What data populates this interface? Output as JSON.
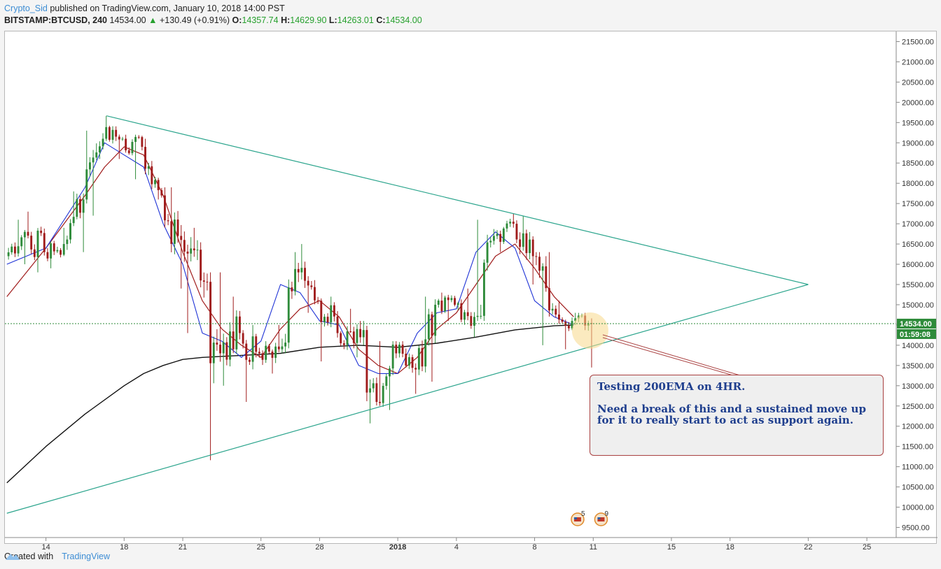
{
  "header": {
    "author": "Crypto_Sid",
    "published": "published on TradingView.com, January 10, 2018 14:00 PST",
    "symbol": "BITSTAMP:BTCUSD, 240",
    "last": "14534.00",
    "change": "+130.49 (+0.91%)",
    "open_label": "O:",
    "open": "14357.74",
    "high_label": "H:",
    "high": "14629.90",
    "low_label": "L:",
    "low": "14263.01",
    "close_label": "C:",
    "close": "14534.00"
  },
  "footer": {
    "created_with": "Created with",
    "brand": "TradingView"
  },
  "annotation": {
    "line1": "Testing 200EMA on 4HR.",
    "line2": "Need a break of this and a sustained move up for it to really start to act as support again."
  },
  "price_tag": {
    "price": "14534.00",
    "countdown": "01:59:08"
  },
  "event_badges": [
    "5",
    "9"
  ],
  "colors": {
    "up": "#2e8b3a",
    "down": "#a01c1c",
    "ema_fast": "#1f33d6",
    "ema_mid": "#a01c1c",
    "ema_200": "#111111",
    "trendline": "#2aa48c",
    "price_line": "#2e8b3a",
    "highlight": "#f7d98a"
  },
  "chart_data": {
    "type": "candlestick",
    "symbol": "BITSTAMP:BTCUSD",
    "interval": "240",
    "ylim": [
      9250,
      21750
    ],
    "y_ticks": [
      9500,
      10000,
      10500,
      11000,
      11500,
      12000,
      12500,
      13000,
      13500,
      14000,
      14500,
      15000,
      15500,
      16000,
      16500,
      17000,
      17500,
      18000,
      18500,
      19000,
      19500,
      20000,
      20500,
      21000,
      21500
    ],
    "x_ticks": [
      "14",
      "18",
      "21",
      "25",
      "28",
      "2018",
      "4",
      "8",
      "11",
      "15",
      "18",
      "22",
      "25"
    ],
    "x_tick_days": [
      14,
      18,
      21,
      25,
      28,
      32,
      35,
      39,
      42,
      46,
      49,
      53,
      56
    ],
    "x_range_days": [
      11.9,
      57.5
    ],
    "candles_daily": [
      {
        "day": 12,
        "o": 16200,
        "h": 17100,
        "l": 16000,
        "c": 16800
      },
      {
        "day": 13,
        "o": 16800,
        "h": 17300,
        "l": 15800,
        "c": 16300
      },
      {
        "day": 14,
        "o": 16300,
        "h": 16900,
        "l": 15900,
        "c": 16500
      },
      {
        "day": 15,
        "o": 16500,
        "h": 17800,
        "l": 16300,
        "c": 17600
      },
      {
        "day": 16,
        "o": 17600,
        "h": 19300,
        "l": 17200,
        "c": 19100
      },
      {
        "day": 17,
        "o": 19100,
        "h": 19666,
        "l": 18600,
        "c": 19100
      },
      {
        "day": 18,
        "o": 19100,
        "h": 19200,
        "l": 18100,
        "c": 18900
      },
      {
        "day": 19,
        "o": 18900,
        "h": 19100,
        "l": 17600,
        "c": 17700
      },
      {
        "day": 20,
        "o": 17700,
        "h": 17900,
        "l": 15400,
        "c": 16600
      },
      {
        "day": 21,
        "o": 16600,
        "h": 16900,
        "l": 14300,
        "c": 15600
      },
      {
        "day": 22,
        "o": 15600,
        "h": 15800,
        "l": 11160,
        "c": 13800
      },
      {
        "day": 23,
        "o": 13800,
        "h": 15200,
        "l": 13000,
        "c": 14300
      },
      {
        "day": 24,
        "o": 14300,
        "h": 14500,
        "l": 12600,
        "c": 13800
      },
      {
        "day": 25,
        "o": 13800,
        "h": 14500,
        "l": 13300,
        "c": 13900
      },
      {
        "day": 26,
        "o": 13900,
        "h": 16300,
        "l": 13800,
        "c": 15800
      },
      {
        "day": 27,
        "o": 15800,
        "h": 16500,
        "l": 14800,
        "c": 15100
      },
      {
        "day": 28,
        "o": 15100,
        "h": 15200,
        "l": 13600,
        "c": 14300
      },
      {
        "day": 29,
        "o": 14300,
        "h": 14900,
        "l": 13700,
        "c": 14400
      },
      {
        "day": 30,
        "o": 14400,
        "h": 14600,
        "l": 12070,
        "c": 12600
      },
      {
        "day": 31,
        "o": 12600,
        "h": 14100,
        "l": 12400,
        "c": 13800
      },
      {
        "day": 32,
        "o": 13800,
        "h": 14100,
        "l": 12800,
        "c": 13400
      },
      {
        "day": 33,
        "o": 13400,
        "h": 15200,
        "l": 13100,
        "c": 15000
      },
      {
        "day": 34,
        "o": 15000,
        "h": 15300,
        "l": 14600,
        "c": 15000
      },
      {
        "day": 35,
        "o": 15000,
        "h": 15400,
        "l": 14200,
        "c": 14700
      },
      {
        "day": 36,
        "o": 14700,
        "h": 17100,
        "l": 14600,
        "c": 16700
      },
      {
        "day": 37,
        "o": 16700,
        "h": 17250,
        "l": 16300,
        "c": 17000
      },
      {
        "day": 38,
        "o": 17000,
        "h": 17200,
        "l": 15500,
        "c": 16200
      },
      {
        "day": 39,
        "o": 16200,
        "h": 16300,
        "l": 14000,
        "c": 14900
      },
      {
        "day": 40,
        "o": 14900,
        "h": 15100,
        "l": 13900,
        "c": 14600
      },
      {
        "day": 41,
        "o": 14600,
        "h": 14800,
        "l": 13450,
        "c": 14534
      }
    ],
    "ema_fast": [
      [
        12,
        16000
      ],
      [
        14,
        16400
      ],
      [
        16,
        17900
      ],
      [
        17,
        19000
      ],
      [
        18,
        18700
      ],
      [
        19,
        18400
      ],
      [
        20,
        17000
      ],
      [
        21,
        16000
      ],
      [
        22,
        14300
      ],
      [
        23,
        14100
      ],
      [
        24,
        13700
      ],
      [
        25,
        14100
      ],
      [
        26,
        15500
      ],
      [
        27,
        15300
      ],
      [
        28,
        14600
      ],
      [
        29,
        14500
      ],
      [
        30,
        13500
      ],
      [
        31,
        13300
      ],
      [
        32,
        13300
      ],
      [
        33,
        14300
      ],
      [
        34,
        14800
      ],
      [
        35,
        14900
      ],
      [
        36,
        16300
      ],
      [
        37,
        16800
      ],
      [
        38,
        16400
      ],
      [
        39,
        15100
      ],
      [
        40,
        14700
      ],
      [
        41,
        14500
      ]
    ],
    "ema_mid": [
      [
        12,
        15200
      ],
      [
        14,
        16400
      ],
      [
        16,
        17700
      ],
      [
        17,
        18400
      ],
      [
        18,
        18900
      ],
      [
        19,
        18700
      ],
      [
        20,
        17700
      ],
      [
        21,
        16300
      ],
      [
        22,
        15100
      ],
      [
        23,
        14400
      ],
      [
        24,
        14000
      ],
      [
        25,
        13700
      ],
      [
        26,
        14400
      ],
      [
        27,
        14900
      ],
      [
        28,
        15100
      ],
      [
        29,
        14700
      ],
      [
        30,
        13900
      ],
      [
        31,
        13500
      ],
      [
        32,
        13300
      ],
      [
        33,
        13700
      ],
      [
        34,
        14400
      ],
      [
        35,
        14800
      ],
      [
        36,
        15500
      ],
      [
        37,
        16200
      ],
      [
        38,
        16500
      ],
      [
        39,
        15900
      ],
      [
        40,
        15200
      ],
      [
        41,
        14700
      ]
    ],
    "ema_200": [
      [
        12,
        10600
      ],
      [
        14,
        11500
      ],
      [
        16,
        12300
      ],
      [
        18,
        13000
      ],
      [
        19,
        13300
      ],
      [
        20,
        13500
      ],
      [
        21,
        13650
      ],
      [
        22,
        13700
      ],
      [
        24,
        13750
      ],
      [
        26,
        13800
      ],
      [
        28,
        13950
      ],
      [
        30,
        14000
      ],
      [
        32,
        13950
      ],
      [
        34,
        14050
      ],
      [
        36,
        14200
      ],
      [
        38,
        14380
      ],
      [
        40,
        14480
      ],
      [
        41,
        14500
      ]
    ],
    "trendlines": [
      {
        "name": "descending",
        "points": [
          [
            17.1,
            19666
          ],
          [
            53.0,
            15500
          ]
        ]
      },
      {
        "name": "ascending",
        "points": [
          [
            12.0,
            9850
          ],
          [
            53.0,
            15500
          ]
        ]
      }
    ],
    "last_price": 14534.0
  }
}
